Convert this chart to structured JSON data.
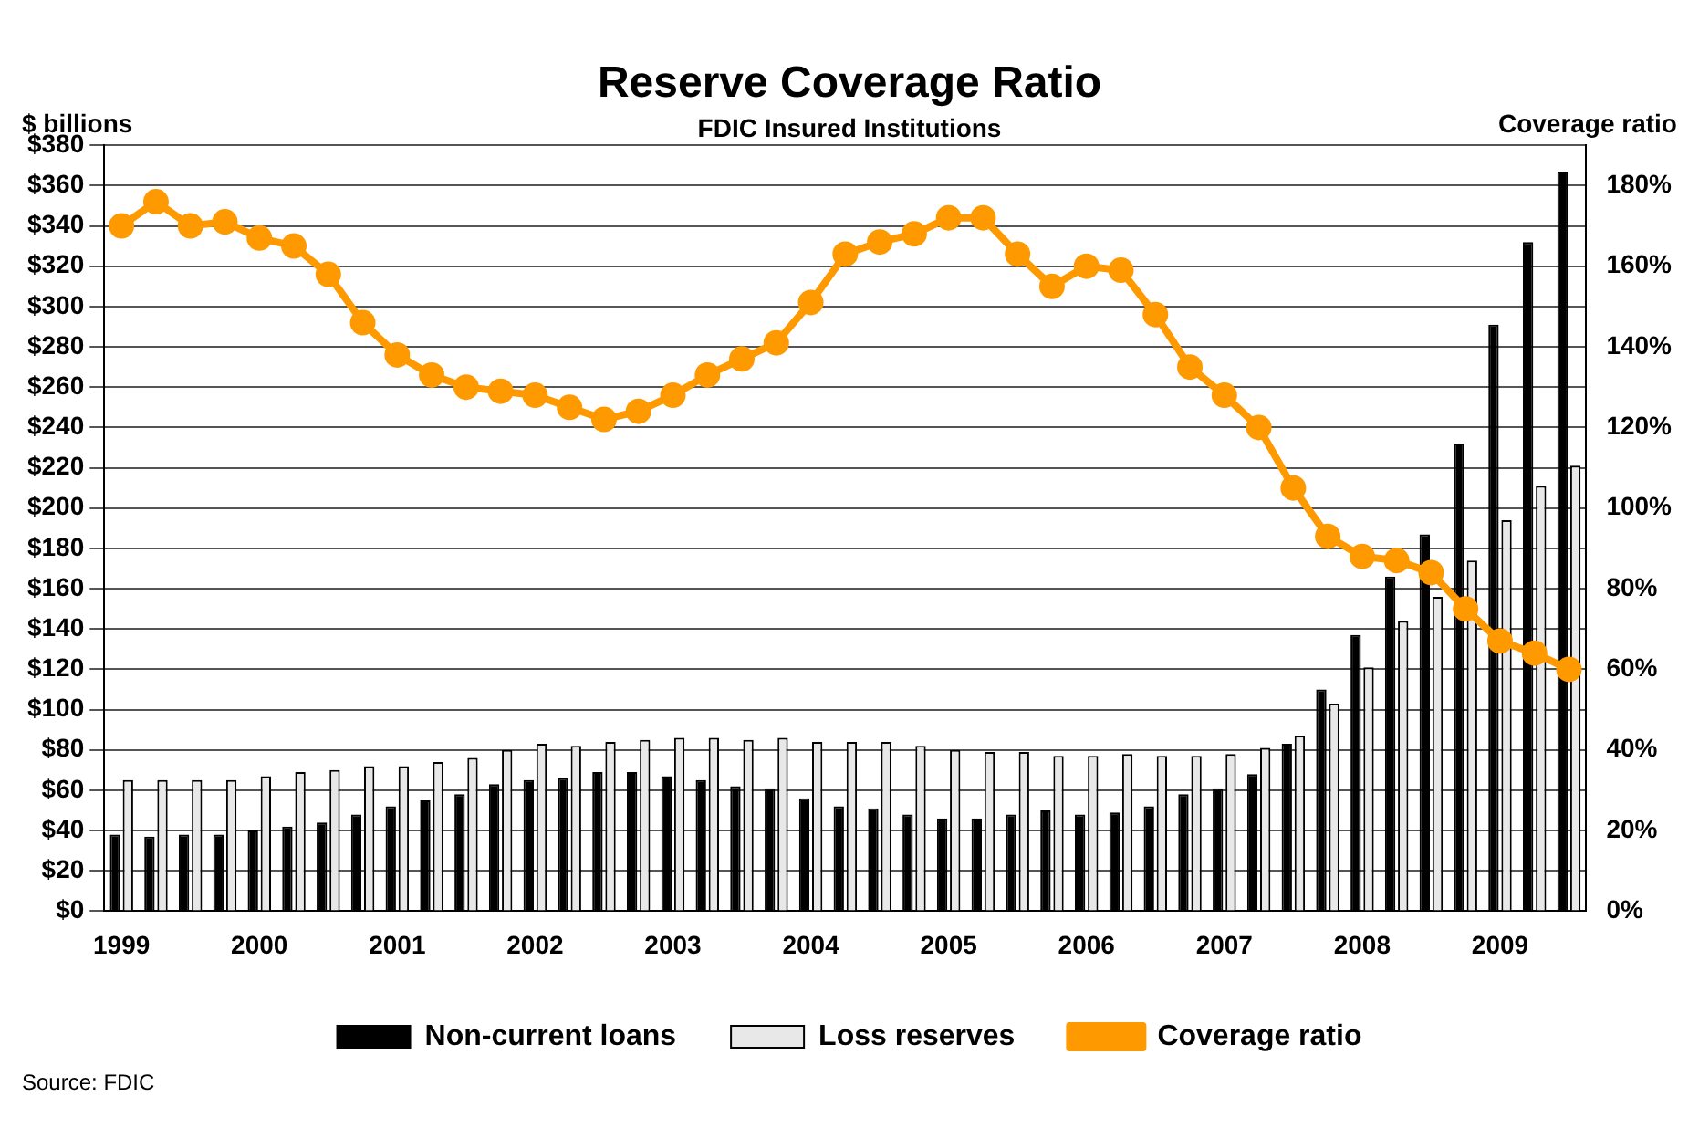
{
  "chart_data": {
    "type": "bar",
    "title": "Reserve Coverage Ratio",
    "subtitle": "FDIC Insured Institutions",
    "ylabel": "$ billions",
    "y2label": "Coverage ratio",
    "categories": [
      "1999",
      null,
      null,
      null,
      "2000",
      null,
      null,
      null,
      "2001",
      null,
      null,
      null,
      "2002",
      null,
      null,
      null,
      "2003",
      null,
      null,
      null,
      "2004",
      null,
      null,
      null,
      "2005",
      null,
      null,
      null,
      "2006",
      null,
      null,
      null,
      "2007",
      null,
      null,
      null,
      "2008",
      null,
      null,
      null,
      "2009",
      null,
      null
    ],
    "series": [
      {
        "name": "Non-current loans",
        "color": "#000000",
        "values": [
          38,
          37,
          38,
          38,
          40,
          42,
          44,
          48,
          52,
          55,
          58,
          63,
          65,
          66,
          69,
          69,
          67,
          65,
          62,
          61,
          56,
          52,
          51,
          48,
          46,
          46,
          48,
          50,
          48,
          49,
          52,
          58,
          61,
          68,
          83,
          110,
          137,
          166,
          187,
          232,
          291,
          332,
          367
        ]
      },
      {
        "name": "Loss reserves",
        "color": "#e8e8e8",
        "values": [
          65,
          65,
          65,
          65,
          67,
          69,
          70,
          72,
          72,
          74,
          76,
          80,
          83,
          82,
          84,
          85,
          86,
          86,
          85,
          86,
          84,
          84,
          84,
          82,
          80,
          79,
          79,
          77,
          77,
          78,
          77,
          77,
          78,
          81,
          87,
          103,
          121,
          144,
          156,
          174,
          194,
          211,
          221
        ]
      },
      {
        "name": "Coverage ratio",
        "type": "line",
        "axis": "y2",
        "color": "#ff9900",
        "values": [
          170,
          176,
          170,
          171,
          167,
          165,
          158,
          146,
          138,
          133,
          130,
          129,
          128,
          125,
          122,
          124,
          128,
          133,
          137,
          141,
          151,
          163,
          166,
          168,
          172,
          172,
          163,
          155,
          160,
          159,
          148,
          135,
          128,
          120,
          105,
          93,
          88,
          87,
          84,
          75,
          67,
          64,
          60
        ]
      }
    ],
    "ylim": [
      0,
      380
    ],
    "yticks": [
      {
        "value": 0,
        "label": "$0"
      },
      {
        "value": 20,
        "label": "$20"
      },
      {
        "value": 40,
        "label": "$40"
      },
      {
        "value": 60,
        "label": "$60"
      },
      {
        "value": 80,
        "label": "$80"
      },
      {
        "value": 100,
        "label": "$100"
      },
      {
        "value": 120,
        "label": "$120"
      },
      {
        "value": 140,
        "label": "$140"
      },
      {
        "value": 160,
        "label": "$160"
      },
      {
        "value": 180,
        "label": "$180"
      },
      {
        "value": 200,
        "label": "$200"
      },
      {
        "value": 220,
        "label": "$220"
      },
      {
        "value": 240,
        "label": "$240"
      },
      {
        "value": 260,
        "label": "$260"
      },
      {
        "value": 280,
        "label": "$280"
      },
      {
        "value": 300,
        "label": "$300"
      },
      {
        "value": 320,
        "label": "$320"
      },
      {
        "value": 340,
        "label": "$340"
      },
      {
        "value": 360,
        "label": "$360"
      },
      {
        "value": 380,
        "label": "$380"
      }
    ],
    "y2lim": [
      0,
      190
    ],
    "y2ticks": [
      {
        "value": 0,
        "label": "0%"
      },
      {
        "value": 20,
        "label": "20%"
      },
      {
        "value": 40,
        "label": "40%"
      },
      {
        "value": 60,
        "label": "60%"
      },
      {
        "value": 80,
        "label": "80%"
      },
      {
        "value": 100,
        "label": "100%"
      },
      {
        "value": 120,
        "label": "120%"
      },
      {
        "value": 140,
        "label": "140%"
      },
      {
        "value": 160,
        "label": "160%"
      },
      {
        "value": 180,
        "label": "180%"
      }
    ],
    "grid": "y",
    "legend": "bottom",
    "marker": "circle",
    "line_style": "solid",
    "annotations": [
      "Source: FDIC"
    ]
  }
}
